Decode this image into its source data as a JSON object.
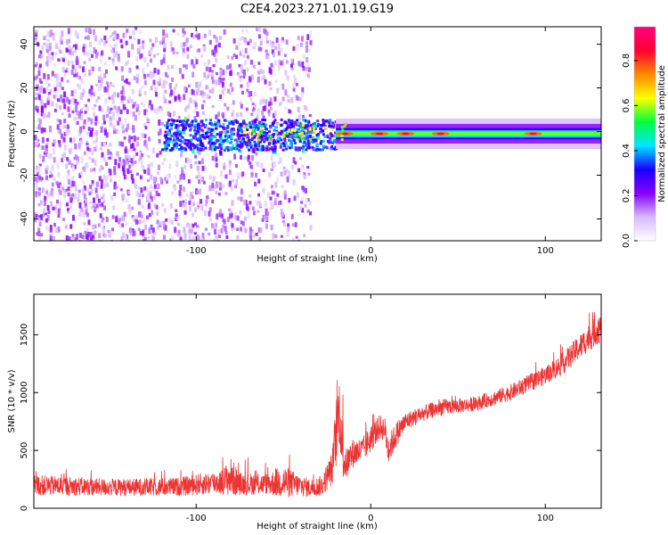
{
  "figure": {
    "title": "C2E4.2023.271.01.19.G19"
  },
  "chart_data": [
    {
      "type": "heatmap",
      "xlabel": "Height of straight line (km)",
      "ylabel": "Frequency (Hz)",
      "xlim": [
        -193,
        132
      ],
      "ylim": [
        -50,
        48
      ],
      "xticks": [
        -100,
        0,
        100
      ],
      "yticks": [
        -40,
        -20,
        0,
        20,
        40
      ],
      "colorbar": {
        "label": "Normalized spectral amplitude",
        "range": [
          0,
          0.95
        ],
        "ticks": [
          "0.0",
          "0.2",
          "0.4",
          "0.6",
          "0.8"
        ],
        "colormap": [
          "#ffffff",
          "#d8b8ff",
          "#8800ff",
          "#1a00ff",
          "#00e5ff",
          "#00ff40",
          "#ffff00",
          "#ff8800",
          "#ff0033",
          "#ff0080"
        ]
      },
      "features": {
        "scatter_region_x": [
          -193,
          -35
        ],
        "tone_start_x": -20,
        "tone_frequency_hz": -1,
        "tone_peaks_x": [
          -15,
          5,
          20,
          40,
          93
        ]
      }
    },
    {
      "type": "line",
      "xlabel": "Height of straight line (km)",
      "ylabel": "SNR (10 * v/v)",
      "xlim": [
        -193,
        132
      ],
      "ylim": [
        0,
        1850
      ],
      "xticks": [
        -100,
        0,
        100
      ],
      "yticks": [
        0,
        500,
        1000,
        1500
      ],
      "color": "#ee3333",
      "envelope": {
        "x": [
          -193,
          -150,
          -110,
          -85,
          -80,
          -75,
          -60,
          -50,
          -42,
          -35,
          -28,
          -22,
          -20,
          -18,
          -16,
          -14,
          -10,
          -5,
          0,
          5,
          8,
          10,
          12,
          15,
          20,
          30,
          40,
          60,
          80,
          100,
          110,
          120,
          130
        ],
        "center": [
          200,
          180,
          185,
          230,
          270,
          210,
          210,
          230,
          200,
          175,
          195,
          350,
          640,
          860,
          450,
          380,
          480,
          500,
          600,
          700,
          690,
          500,
          560,
          650,
          750,
          820,
          870,
          900,
          1000,
          1150,
          1250,
          1400,
          1550
        ],
        "noise": [
          90,
          75,
          80,
          110,
          170,
          100,
          90,
          150,
          100,
          80,
          90,
          150,
          300,
          290,
          220,
          140,
          130,
          110,
          120,
          110,
          110,
          130,
          120,
          110,
          80,
          70,
          70,
          60,
          70,
          80,
          95,
          110,
          130
        ]
      }
    }
  ]
}
